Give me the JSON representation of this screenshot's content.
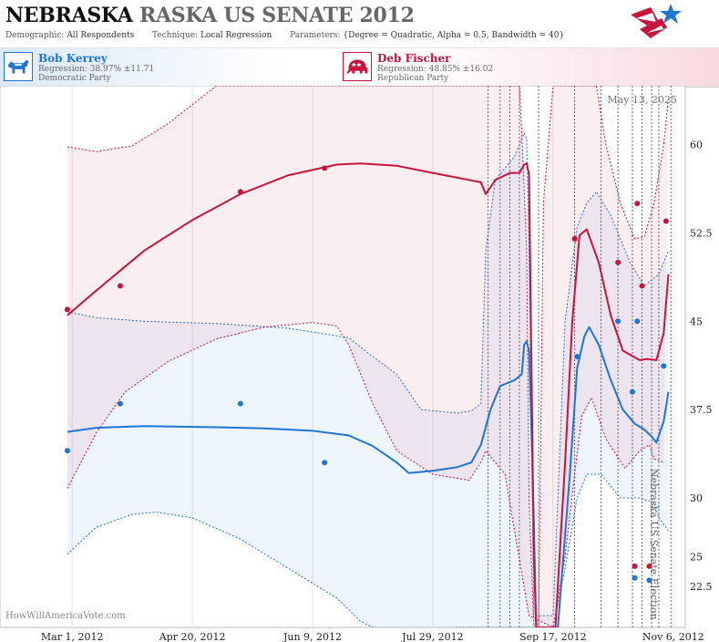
{
  "header": {
    "title_state": "NEBRASKA",
    "title_rest": "RASKA US SENATE 2012",
    "demographic_label": "Demographic:",
    "demographic_value": "All Respondents",
    "technique_label": "Technique:",
    "technique_value": "Local Regression",
    "parameters_label": "Parameters:",
    "parameters_value": "{Degree = Quadratic, Alpha = 0.5, Bandwidth = 40}"
  },
  "candidates": [
    {
      "name": "Bob Kerrey",
      "regression": "Regression: 38.97% ±11.71",
      "party": "Democratic Party",
      "color": "#1f75d6",
      "icon": "donkey-icon"
    },
    {
      "name": "Deb Fischer",
      "regression": "Regression: 48.85% ±16.02",
      "party": "Republican Party",
      "color": "#c8143c",
      "icon": "elephant-icon"
    }
  ],
  "chart_data": {
    "type": "line",
    "date_label": "May 13, 2025",
    "side_label": "Nebraska US Senate Election",
    "source_label": "HowWillAmericaVote.com",
    "x_tick_labels": [
      "Mar 1, 2012",
      "Apr 20, 2012",
      "Jun 9, 2012",
      "Jul 29, 2012",
      "Sep 17, 2012",
      "Nov 6, 2012"
    ],
    "x_ticks_day": [
      0,
      50,
      100,
      150,
      200,
      250
    ],
    "xlim_day": [
      -30,
      255
    ],
    "y_tick_labels": [
      "22.5",
      "25",
      "30",
      "37.5",
      "45",
      "52.5",
      "60"
    ],
    "y_ticks": [
      22.5,
      25,
      30,
      37.5,
      45,
      52.5,
      60
    ],
    "ylim": [
      19,
      65
    ],
    "poll_dates_day": [
      173,
      178,
      182,
      186,
      194,
      209,
      220,
      227,
      233,
      237,
      241,
      244,
      249
    ],
    "series": [
      {
        "name": "Bob Kerrey",
        "color": "#1f75d6",
        "fit": [
          [
            -2,
            35.6
          ],
          [
            10,
            35.95
          ],
          [
            30,
            36.1
          ],
          [
            60,
            36.0
          ],
          [
            80,
            35.9
          ],
          [
            100,
            35.7
          ],
          [
            115,
            35.3
          ],
          [
            125,
            34.4
          ],
          [
            135,
            33.0
          ],
          [
            140,
            32.1
          ],
          [
            150,
            32.3
          ],
          [
            160,
            32.6
          ],
          [
            166,
            33.0
          ],
          [
            170,
            34.5
          ],
          [
            174,
            37.5
          ],
          [
            178,
            39.5
          ],
          [
            184,
            40.0
          ],
          [
            187,
            40.5
          ],
          [
            188,
            43.0
          ],
          [
            189,
            43.3
          ],
          [
            190,
            42.5
          ],
          [
            191,
            36.0
          ],
          [
            192,
            28.0
          ],
          [
            193,
            19.0
          ],
          [
            202,
            19.0
          ],
          [
            207,
            32.0
          ],
          [
            210,
            41.0
          ],
          [
            213,
            43.7
          ],
          [
            215,
            44.5
          ],
          [
            219,
            43.0
          ],
          [
            224,
            40.0
          ],
          [
            229,
            37.5
          ],
          [
            234,
            36.3
          ],
          [
            238,
            35.8
          ],
          [
            241,
            35.2
          ],
          [
            243,
            34.7
          ],
          [
            246,
            36.5
          ],
          [
            248,
            39.0
          ]
        ],
        "upper": [
          [
            -2,
            45.8
          ],
          [
            10,
            45.3
          ],
          [
            30,
            45.0
          ],
          [
            60,
            44.8
          ],
          [
            90,
            44.4
          ],
          [
            115,
            43.6
          ],
          [
            125,
            42.0
          ],
          [
            135,
            40.5
          ],
          [
            145,
            37.5
          ],
          [
            160,
            37.2
          ],
          [
            166,
            37.4
          ],
          [
            170,
            38.0
          ],
          [
            172,
            51.0
          ],
          [
            176,
            57.0
          ],
          [
            180,
            58.0
          ],
          [
            184,
            59.0
          ],
          [
            188,
            61.0
          ],
          [
            189,
            60.5
          ],
          [
            190,
            51.0
          ],
          [
            192,
            20.0
          ],
          [
            200,
            20.0
          ],
          [
            205,
            45.0
          ],
          [
            210,
            53.0
          ],
          [
            214,
            55.0
          ],
          [
            218,
            56.0
          ],
          [
            224,
            54.0
          ],
          [
            232,
            50.0
          ],
          [
            238,
            48.0
          ],
          [
            244,
            49.0
          ],
          [
            248,
            51.0
          ]
        ],
        "lower": [
          [
            -2,
            25.2
          ],
          [
            10,
            27.5
          ],
          [
            25,
            28.6
          ],
          [
            35,
            28.8
          ],
          [
            50,
            28.3
          ],
          [
            70,
            26.5
          ],
          [
            90,
            24.0
          ],
          [
            110,
            21.5
          ],
          [
            120,
            19.5
          ],
          [
            135,
            18.0
          ],
          [
            160,
            19.0
          ],
          [
            175,
            19.0
          ],
          [
            200,
            19.0
          ],
          [
            205,
            24.0
          ],
          [
            210,
            30.0
          ],
          [
            214,
            32.0
          ],
          [
            220,
            32.0
          ],
          [
            228,
            30.0
          ],
          [
            236,
            30.0
          ],
          [
            242,
            29.6
          ],
          [
            244,
            28.3
          ],
          [
            248,
            27.2
          ]
        ],
        "points": [
          [
            -2,
            34.0
          ],
          [
            20,
            38.0
          ],
          [
            70,
            38.0
          ],
          [
            105,
            33.0
          ],
          [
            210,
            42.0
          ],
          [
            227,
            45.0
          ],
          [
            233,
            39.0
          ],
          [
            235,
            45.0
          ],
          [
            246,
            41.2
          ],
          [
            234,
            23.2
          ],
          [
            240,
            23.0
          ]
        ]
      },
      {
        "name": "Deb Fischer",
        "color": "#c8143c",
        "fit": [
          [
            -2,
            45.5
          ],
          [
            10,
            47.6
          ],
          [
            30,
            51.0
          ],
          [
            50,
            53.6
          ],
          [
            70,
            55.8
          ],
          [
            90,
            57.4
          ],
          [
            110,
            58.3
          ],
          [
            120,
            58.4
          ],
          [
            135,
            58.2
          ],
          [
            150,
            57.6
          ],
          [
            165,
            57.0
          ],
          [
            170,
            56.8
          ],
          [
            172,
            55.8
          ],
          [
            176,
            57.0
          ],
          [
            182,
            57.6
          ],
          [
            186,
            57.6
          ],
          [
            188,
            58.3
          ],
          [
            189,
            58.4
          ],
          [
            190,
            57.5
          ],
          [
            191,
            42.0
          ],
          [
            192,
            25.0
          ],
          [
            193,
            19.0
          ],
          [
            201,
            19.0
          ],
          [
            205,
            33.0
          ],
          [
            208,
            45.0
          ],
          [
            211,
            52.3
          ],
          [
            214,
            52.8
          ],
          [
            219,
            50.0
          ],
          [
            224,
            45.5
          ],
          [
            229,
            42.5
          ],
          [
            236,
            41.7
          ],
          [
            239,
            41.8
          ],
          [
            243,
            41.7
          ],
          [
            246,
            44.0
          ],
          [
            248,
            49.0
          ]
        ],
        "upper": [
          [
            -2,
            59.8
          ],
          [
            10,
            59.4
          ],
          [
            25,
            59.9
          ],
          [
            40,
            61.8
          ],
          [
            60,
            65.0
          ],
          [
            120,
            65.0
          ],
          [
            160,
            65.0
          ],
          [
            186,
            65.0
          ],
          [
            187,
            61.0
          ],
          [
            189,
            51.0
          ],
          [
            190,
            30.0
          ],
          [
            192,
            19.0
          ],
          [
            194,
            19.0
          ],
          [
            196,
            55.0
          ],
          [
            200,
            65.0
          ],
          [
            218,
            65.0
          ],
          [
            222,
            60.0
          ],
          [
            228,
            55.0
          ],
          [
            234,
            52.0
          ],
          [
            238,
            52.2
          ],
          [
            242,
            55.0
          ],
          [
            246,
            60.0
          ],
          [
            248,
            64.0
          ]
        ],
        "lower": [
          [
            -2,
            30.8
          ],
          [
            10,
            35.5
          ],
          [
            22,
            39.0
          ],
          [
            40,
            41.6
          ],
          [
            60,
            43.5
          ],
          [
            80,
            44.5
          ],
          [
            100,
            44.9
          ],
          [
            110,
            44.6
          ],
          [
            115,
            43.0
          ],
          [
            125,
            38.0
          ],
          [
            135,
            34.0
          ],
          [
            150,
            32.0
          ],
          [
            165,
            31.5
          ],
          [
            170,
            33.0
          ],
          [
            172,
            34.0
          ],
          [
            180,
            32.0
          ],
          [
            190,
            20.0
          ],
          [
            200,
            19.0
          ],
          [
            205,
            25.0
          ],
          [
            209,
            32.0
          ],
          [
            212,
            37.0
          ],
          [
            216,
            38.5
          ],
          [
            222,
            35.0
          ],
          [
            230,
            32.5
          ],
          [
            236,
            34.0
          ],
          [
            240,
            34.5
          ],
          [
            242,
            33.3
          ],
          [
            246,
            33.0
          ]
        ],
        "points": [
          [
            -2,
            46.0
          ],
          [
            20,
            48.0
          ],
          [
            70,
            56.0
          ],
          [
            105,
            58.0
          ],
          [
            209,
            52.0
          ],
          [
            227,
            50.0
          ],
          [
            235,
            55.0
          ],
          [
            237,
            48.0
          ],
          [
            247,
            53.5
          ],
          [
            234,
            24.2
          ],
          [
            240,
            24.2
          ]
        ]
      }
    ]
  }
}
